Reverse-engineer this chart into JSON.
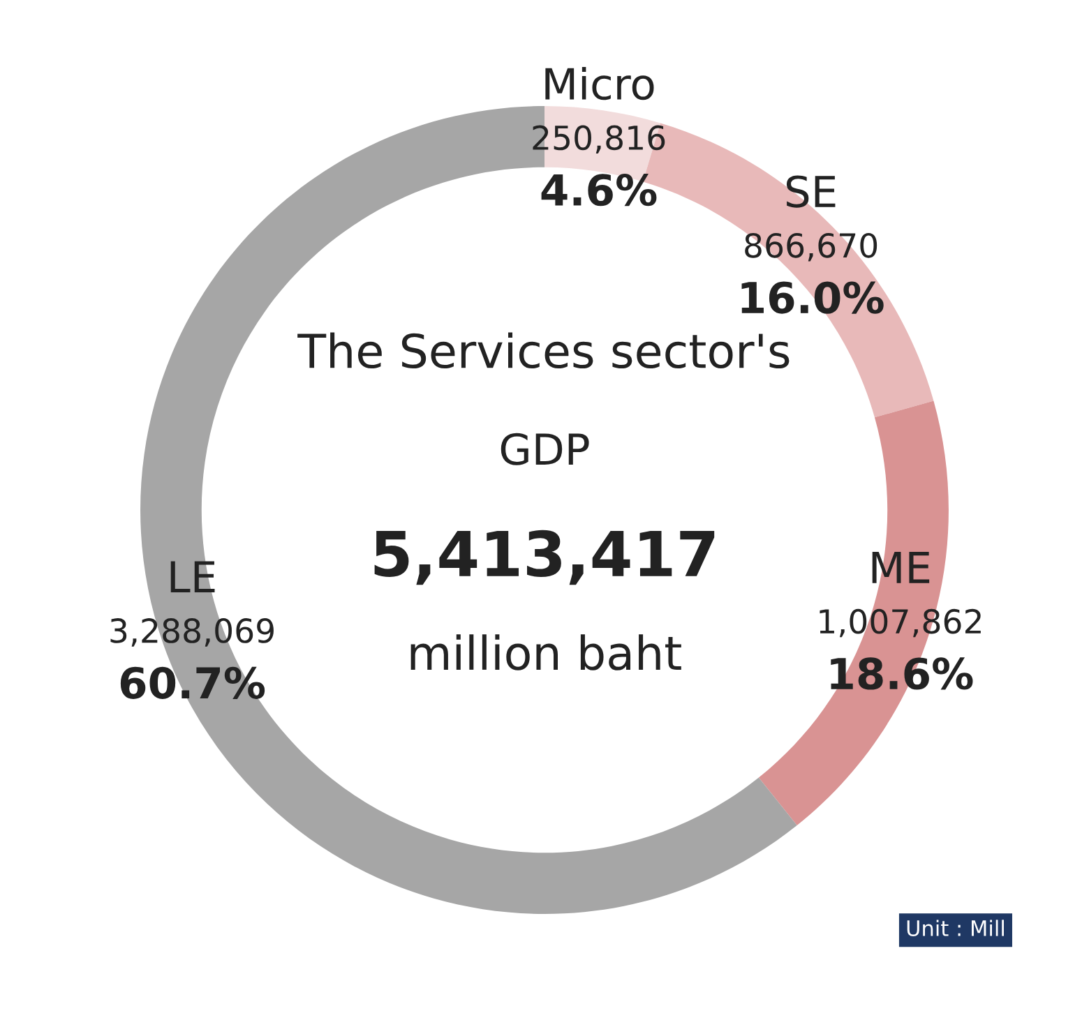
{
  "chart_data": {
    "type": "donut",
    "categories": [
      "Micro",
      "SE",
      "ME",
      "LE"
    ],
    "values": [
      250816,
      866670,
      1007862,
      3288069
    ],
    "colors": [
      "#f2dcdc",
      "#e8b9b9",
      "#d99393",
      "#a6a6a6"
    ],
    "value_labels": [
      "250,816\n4.6%",
      "866,670\n16.0%",
      "1,007,862\n18.6%",
      "3,288,069\n60.7%"
    ],
    "annotations": [
      "The Services sector's",
      "GDP",
      "5,413,417",
      "million baht",
      "Unit : Mill"
    ],
    "legend": false
  }
}
